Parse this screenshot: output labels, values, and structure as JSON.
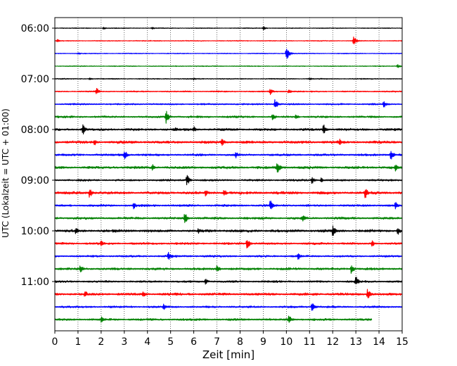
{
  "chart_data": {
    "type": "line",
    "title": "",
    "xlabel": "Zeit  [min]",
    "ylabel": "UTC (Lokalzeit = UTC + 01:00)",
    "xlim": [
      0,
      15
    ],
    "x_ticks": [
      0,
      1,
      2,
      3,
      4,
      5,
      6,
      7,
      8,
      9,
      10,
      11,
      12,
      13,
      14,
      15
    ],
    "x_tick_labels": [
      "0",
      "1",
      "2",
      "3",
      "4",
      "5",
      "6",
      "7",
      "8",
      "9",
      "10",
      "11",
      "12",
      "13",
      "14",
      "15"
    ],
    "ylim": [
      0,
      24
    ],
    "y_ticks": [
      0,
      4,
      8,
      12,
      16,
      20
    ],
    "y_tick_labels": [
      "06:00",
      "07:00",
      "08:00",
      "09:00",
      "10:00",
      "11:00"
    ],
    "row_interval_minutes": 15,
    "grid": {
      "x": true,
      "y": false,
      "style": "dotted"
    },
    "legend": "none",
    "colors": [
      "#000000",
      "#ff0000",
      "#0000ff",
      "#008000"
    ],
    "traces": [
      {
        "row": 0,
        "start": "06:00",
        "color": "#000000",
        "noise": 0.5,
        "end_min": 15,
        "events": [
          [
            2.1,
            2
          ],
          [
            4.2,
            2
          ],
          [
            9.0,
            3
          ]
        ]
      },
      {
        "row": 1,
        "start": "06:15",
        "color": "#ff0000",
        "noise": 0.5,
        "end_min": 15,
        "events": [
          [
            0.1,
            3
          ],
          [
            12.9,
            8
          ]
        ]
      },
      {
        "row": 2,
        "start": "06:30",
        "color": "#0000ff",
        "noise": 0.5,
        "end_min": 15,
        "events": [
          [
            1.0,
            2
          ],
          [
            10.0,
            11
          ]
        ]
      },
      {
        "row": 3,
        "start": "06:45",
        "color": "#008000",
        "noise": 0.5,
        "end_min": 15,
        "events": [
          [
            14.8,
            3
          ]
        ]
      },
      {
        "row": 4,
        "start": "07:00",
        "color": "#000000",
        "noise": 0.6,
        "end_min": 15,
        "events": [
          [
            1.5,
            2
          ],
          [
            6.0,
            2
          ],
          [
            11.0,
            2
          ]
        ]
      },
      {
        "row": 5,
        "start": "07:15",
        "color": "#ff0000",
        "noise": 0.8,
        "end_min": 15,
        "events": [
          [
            1.8,
            6
          ],
          [
            9.3,
            5
          ],
          [
            10.1,
            4
          ]
        ]
      },
      {
        "row": 6,
        "start": "07:30",
        "color": "#0000ff",
        "noise": 1.0,
        "end_min": 15,
        "events": [
          [
            9.5,
            9
          ],
          [
            14.2,
            6
          ]
        ]
      },
      {
        "row": 7,
        "start": "07:45",
        "color": "#008000",
        "noise": 1.2,
        "end_min": 15,
        "events": [
          [
            4.8,
            10
          ],
          [
            9.4,
            6
          ],
          [
            10.4,
            4
          ]
        ]
      },
      {
        "row": 8,
        "start": "08:00",
        "color": "#000000",
        "noise": 1.4,
        "end_min": 15,
        "events": [
          [
            1.2,
            9
          ],
          [
            6.0,
            5
          ],
          [
            11.6,
            10
          ],
          [
            5.2,
            4
          ]
        ]
      },
      {
        "row": 9,
        "start": "08:15",
        "color": "#ff0000",
        "noise": 1.6,
        "end_min": 15,
        "events": [
          [
            1.7,
            6
          ],
          [
            7.2,
            7
          ],
          [
            12.3,
            5
          ]
        ]
      },
      {
        "row": 10,
        "start": "08:30",
        "color": "#0000ff",
        "noise": 1.3,
        "end_min": 15,
        "events": [
          [
            3.0,
            8
          ],
          [
            7.8,
            6
          ],
          [
            14.5,
            9
          ]
        ]
      },
      {
        "row": 11,
        "start": "08:45",
        "color": "#008000",
        "noise": 1.5,
        "end_min": 15,
        "events": [
          [
            4.2,
            6
          ],
          [
            9.6,
            10
          ],
          [
            14.7,
            6
          ]
        ]
      },
      {
        "row": 12,
        "start": "09:00",
        "color": "#000000",
        "noise": 1.2,
        "end_min": 15,
        "events": [
          [
            5.7,
            9
          ],
          [
            11.1,
            6
          ],
          [
            11.5,
            4
          ]
        ]
      },
      {
        "row": 13,
        "start": "09:15",
        "color": "#ff0000",
        "noise": 1.6,
        "end_min": 15,
        "events": [
          [
            1.5,
            9
          ],
          [
            6.5,
            5
          ],
          [
            7.3,
            6
          ],
          [
            13.4,
            9
          ]
        ]
      },
      {
        "row": 14,
        "start": "09:30",
        "color": "#0000ff",
        "noise": 1.3,
        "end_min": 15,
        "events": [
          [
            3.4,
            6
          ],
          [
            9.3,
            9
          ],
          [
            14.7,
            6
          ]
        ]
      },
      {
        "row": 15,
        "start": "09:45",
        "color": "#008000",
        "noise": 1.4,
        "end_min": 15,
        "events": [
          [
            5.6,
            10
          ],
          [
            10.7,
            6
          ]
        ]
      },
      {
        "row": 16,
        "start": "10:00",
        "color": "#000000",
        "noise": 1.6,
        "end_min": 15,
        "events": [
          [
            0.9,
            8
          ],
          [
            6.2,
            5
          ],
          [
            12.0,
            9
          ],
          [
            14.8,
            7
          ]
        ]
      },
      {
        "row": 17,
        "start": "10:15",
        "color": "#ff0000",
        "noise": 1.3,
        "end_min": 15,
        "events": [
          [
            2.0,
            6
          ],
          [
            8.3,
            10
          ],
          [
            13.7,
            5
          ]
        ]
      },
      {
        "row": 18,
        "start": "10:30",
        "color": "#0000ff",
        "noise": 1.2,
        "end_min": 15,
        "events": [
          [
            4.9,
            9
          ],
          [
            10.5,
            6
          ]
        ]
      },
      {
        "row": 19,
        "start": "10:45",
        "color": "#008000",
        "noise": 1.4,
        "end_min": 15,
        "events": [
          [
            1.1,
            7
          ],
          [
            7.0,
            6
          ],
          [
            12.8,
            8
          ]
        ]
      },
      {
        "row": 20,
        "start": "11:00",
        "color": "#000000",
        "noise": 1.2,
        "end_min": 15,
        "events": [
          [
            6.5,
            5
          ],
          [
            13.0,
            9
          ]
        ]
      },
      {
        "row": 21,
        "start": "11:15",
        "color": "#ff0000",
        "noise": 1.5,
        "end_min": 15,
        "events": [
          [
            1.3,
            6
          ],
          [
            3.8,
            5
          ],
          [
            13.5,
            9
          ]
        ]
      },
      {
        "row": 22,
        "start": "11:30",
        "color": "#0000ff",
        "noise": 1.2,
        "end_min": 15,
        "events": [
          [
            4.7,
            5
          ],
          [
            11.1,
            8
          ]
        ]
      },
      {
        "row": 23,
        "start": "11:45",
        "color": "#008000",
        "noise": 1.3,
        "end_min": 13.7,
        "events": [
          [
            2.0,
            5
          ],
          [
            10.1,
            8
          ]
        ]
      }
    ]
  }
}
